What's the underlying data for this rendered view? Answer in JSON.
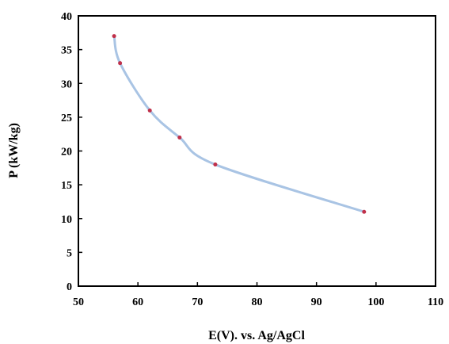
{
  "chart_data": {
    "type": "line",
    "title": "",
    "xlabel": "E(V). vs. Ag/AgCl",
    "ylabel": "P (kW/kg)",
    "xlim": [
      50,
      110
    ],
    "ylim": [
      0,
      40
    ],
    "xticks": [
      50,
      60,
      70,
      80,
      90,
      100,
      110
    ],
    "yticks": [
      0,
      5,
      10,
      15,
      20,
      25,
      30,
      35,
      40
    ],
    "grid": false,
    "legend": "none",
    "series": [
      {
        "x": [
          56,
          57,
          62,
          67,
          73,
          98
        ],
        "y": [
          37,
          33,
          26,
          22,
          18,
          11
        ]
      }
    ],
    "colors": {
      "line": "#a9c4e4",
      "marker": "#c0304a",
      "axis": "#000000"
    }
  }
}
